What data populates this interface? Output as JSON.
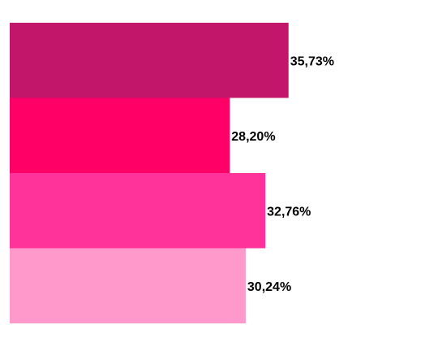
{
  "chart_data": {
    "type": "bar",
    "orientation": "horizontal",
    "categories": [
      "",
      "",
      "",
      ""
    ],
    "values": [
      35.73,
      28.2,
      32.76,
      30.24
    ],
    "data_labels": [
      "35,73%",
      "28,20%",
      "32,76%",
      "30,24%"
    ],
    "colors": [
      "#c2166b",
      "#ff0066",
      "#ff3399",
      "#ff99cc"
    ],
    "title": "",
    "xlabel": "",
    "ylabel": "",
    "xlim": [
      0,
      100
    ],
    "grid": false,
    "legend": "none"
  }
}
